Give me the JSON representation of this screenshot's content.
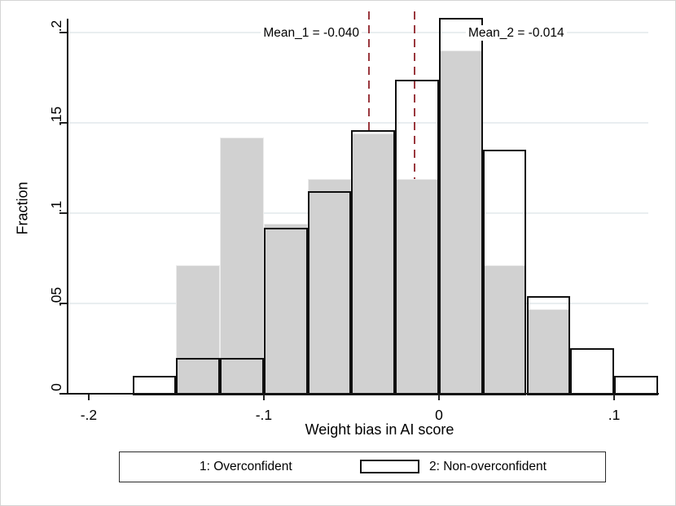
{
  "chart_data": {
    "type": "bar",
    "subtype": "overlaid-histogram",
    "title": "",
    "xlabel": "Weight bias in AI score",
    "ylabel": "Fraction",
    "bin_width": 0.025,
    "bin_left_edges": [
      -0.175,
      -0.15,
      -0.125,
      -0.1,
      -0.075,
      -0.05,
      -0.025,
      0,
      0.025,
      0.05,
      0.075,
      0.1
    ],
    "series": [
      {
        "name": "1: Overconfident",
        "style": "filled",
        "fill_color": "#d1d1d1",
        "edge_color": "#ececec",
        "values": [
          0,
          0.071,
          0.142,
          0.094,
          0.119,
          0.144,
          0.119,
          0.19,
          0.071,
          0.047,
          0,
          0
        ]
      },
      {
        "name": "2: Non-overconfident",
        "style": "hollow",
        "fill_color": "none",
        "edge_color": "#101010",
        "values": [
          0.01,
          0.02,
          0.02,
          0.092,
          0.112,
          0.146,
          0.174,
          0.208,
          0.135,
          0.054,
          0.025,
          0.01
        ]
      }
    ],
    "mean_lines": [
      {
        "label": "Mean_1 = -0.040",
        "x": -0.04,
        "color": "#9a383e",
        "style": "dashed"
      },
      {
        "label": "Mean_2 = -0.014",
        "x": -0.014,
        "color": "#9a383e",
        "style": "dashed"
      }
    ],
    "x_ticks": [
      {
        "value": -0.2,
        "label": "-.2"
      },
      {
        "value": -0.1,
        "label": "-.1"
      },
      {
        "value": 0,
        "label": "0"
      },
      {
        "value": 0.1,
        "label": ".1"
      }
    ],
    "y_ticks": [
      {
        "value": 0,
        "label": "0"
      },
      {
        "value": 0.05,
        "label": ".05"
      },
      {
        "value": 0.1,
        "label": ".1"
      },
      {
        "value": 0.15,
        "label": ".15"
      },
      {
        "value": 0.2,
        "label": ".2"
      }
    ],
    "xlim": [
      -0.2116,
      0.1265
    ],
    "ylim": [
      0,
      0.2117
    ],
    "grid": "horizontal",
    "gridline_color": "#e9eef0",
    "legend": {
      "position": "bottom",
      "entries": [
        "1: Overconfident",
        "2: Non-overconfident"
      ]
    }
  }
}
